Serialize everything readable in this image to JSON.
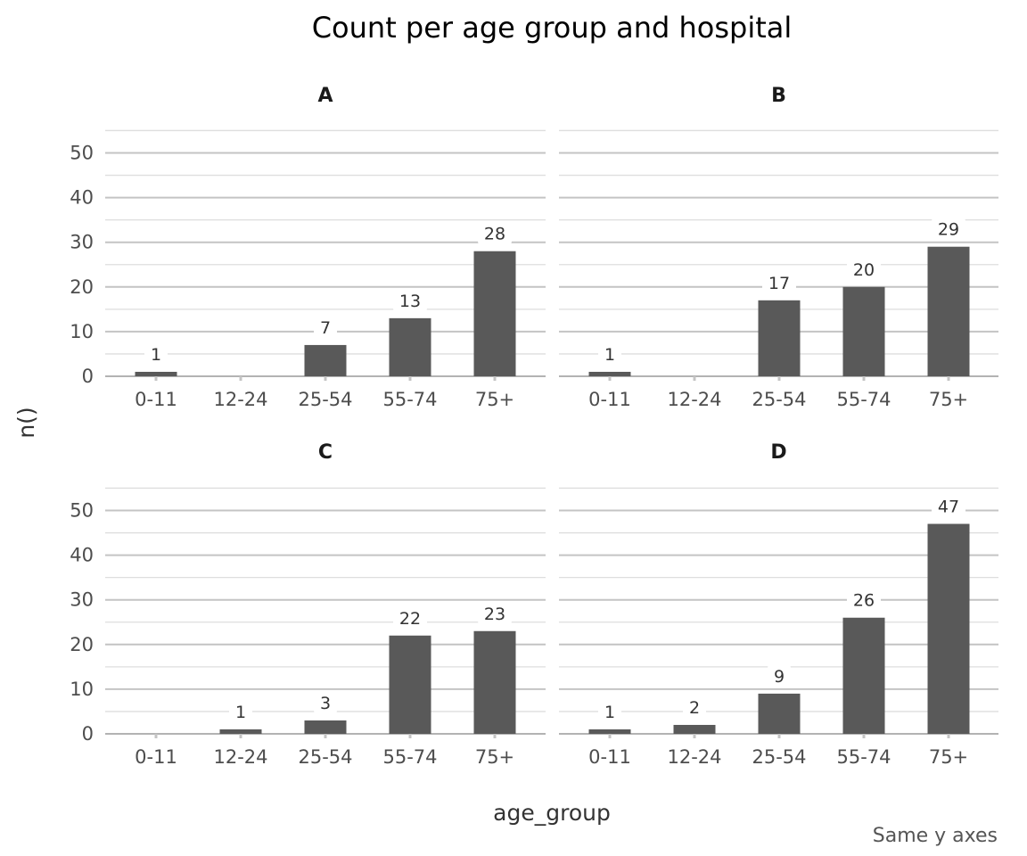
{
  "chart_data": {
    "type": "bar",
    "title": "Count per age group and hospital",
    "xlabel": "age_group",
    "ylabel": "n()",
    "caption": "Same y axes",
    "categories": [
      "0-11",
      "12-24",
      "25-54",
      "55-74",
      "75+"
    ],
    "ylim": [
      0,
      55
    ],
    "yticks": [
      0,
      10,
      20,
      30,
      40,
      50
    ],
    "grid": true,
    "bar_color": "#595959",
    "facets": [
      {
        "label": "A",
        "values": [
          1,
          0,
          7,
          13,
          28
        ]
      },
      {
        "label": "B",
        "values": [
          1,
          0,
          17,
          20,
          29
        ]
      },
      {
        "label": "C",
        "values": [
          0,
          1,
          3,
          22,
          23
        ]
      },
      {
        "label": "D",
        "values": [
          1,
          2,
          9,
          26,
          47
        ]
      }
    ]
  }
}
